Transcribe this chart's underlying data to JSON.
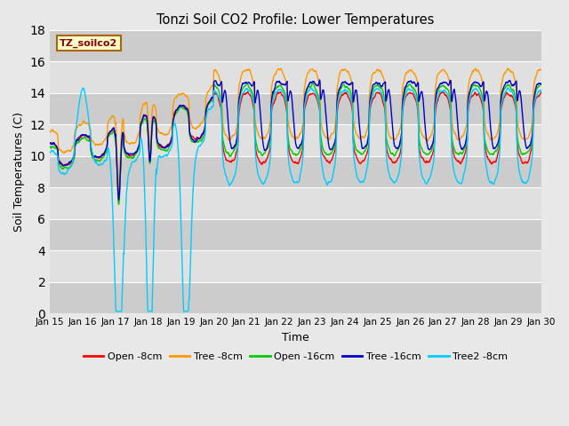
{
  "title": "Tonzi Soil CO2 Profile: Lower Temperatures",
  "xlabel": "Time",
  "ylabel": "Soil Temperatures (C)",
  "ylim": [
    0,
    18
  ],
  "yticks": [
    0,
    2,
    4,
    6,
    8,
    10,
    12,
    14,
    16,
    18
  ],
  "plot_bg_light": "#e8e8e8",
  "plot_bg_dark": "#d0d0d0",
  "legend_entries": [
    "Open -8cm",
    "Tree -8cm",
    "Open -16cm",
    "Tree -16cm",
    "Tree2 -8cm"
  ],
  "legend_colors": [
    "#ff0000",
    "#ff9900",
    "#00cc00",
    "#0000cc",
    "#00ccff"
  ]
}
